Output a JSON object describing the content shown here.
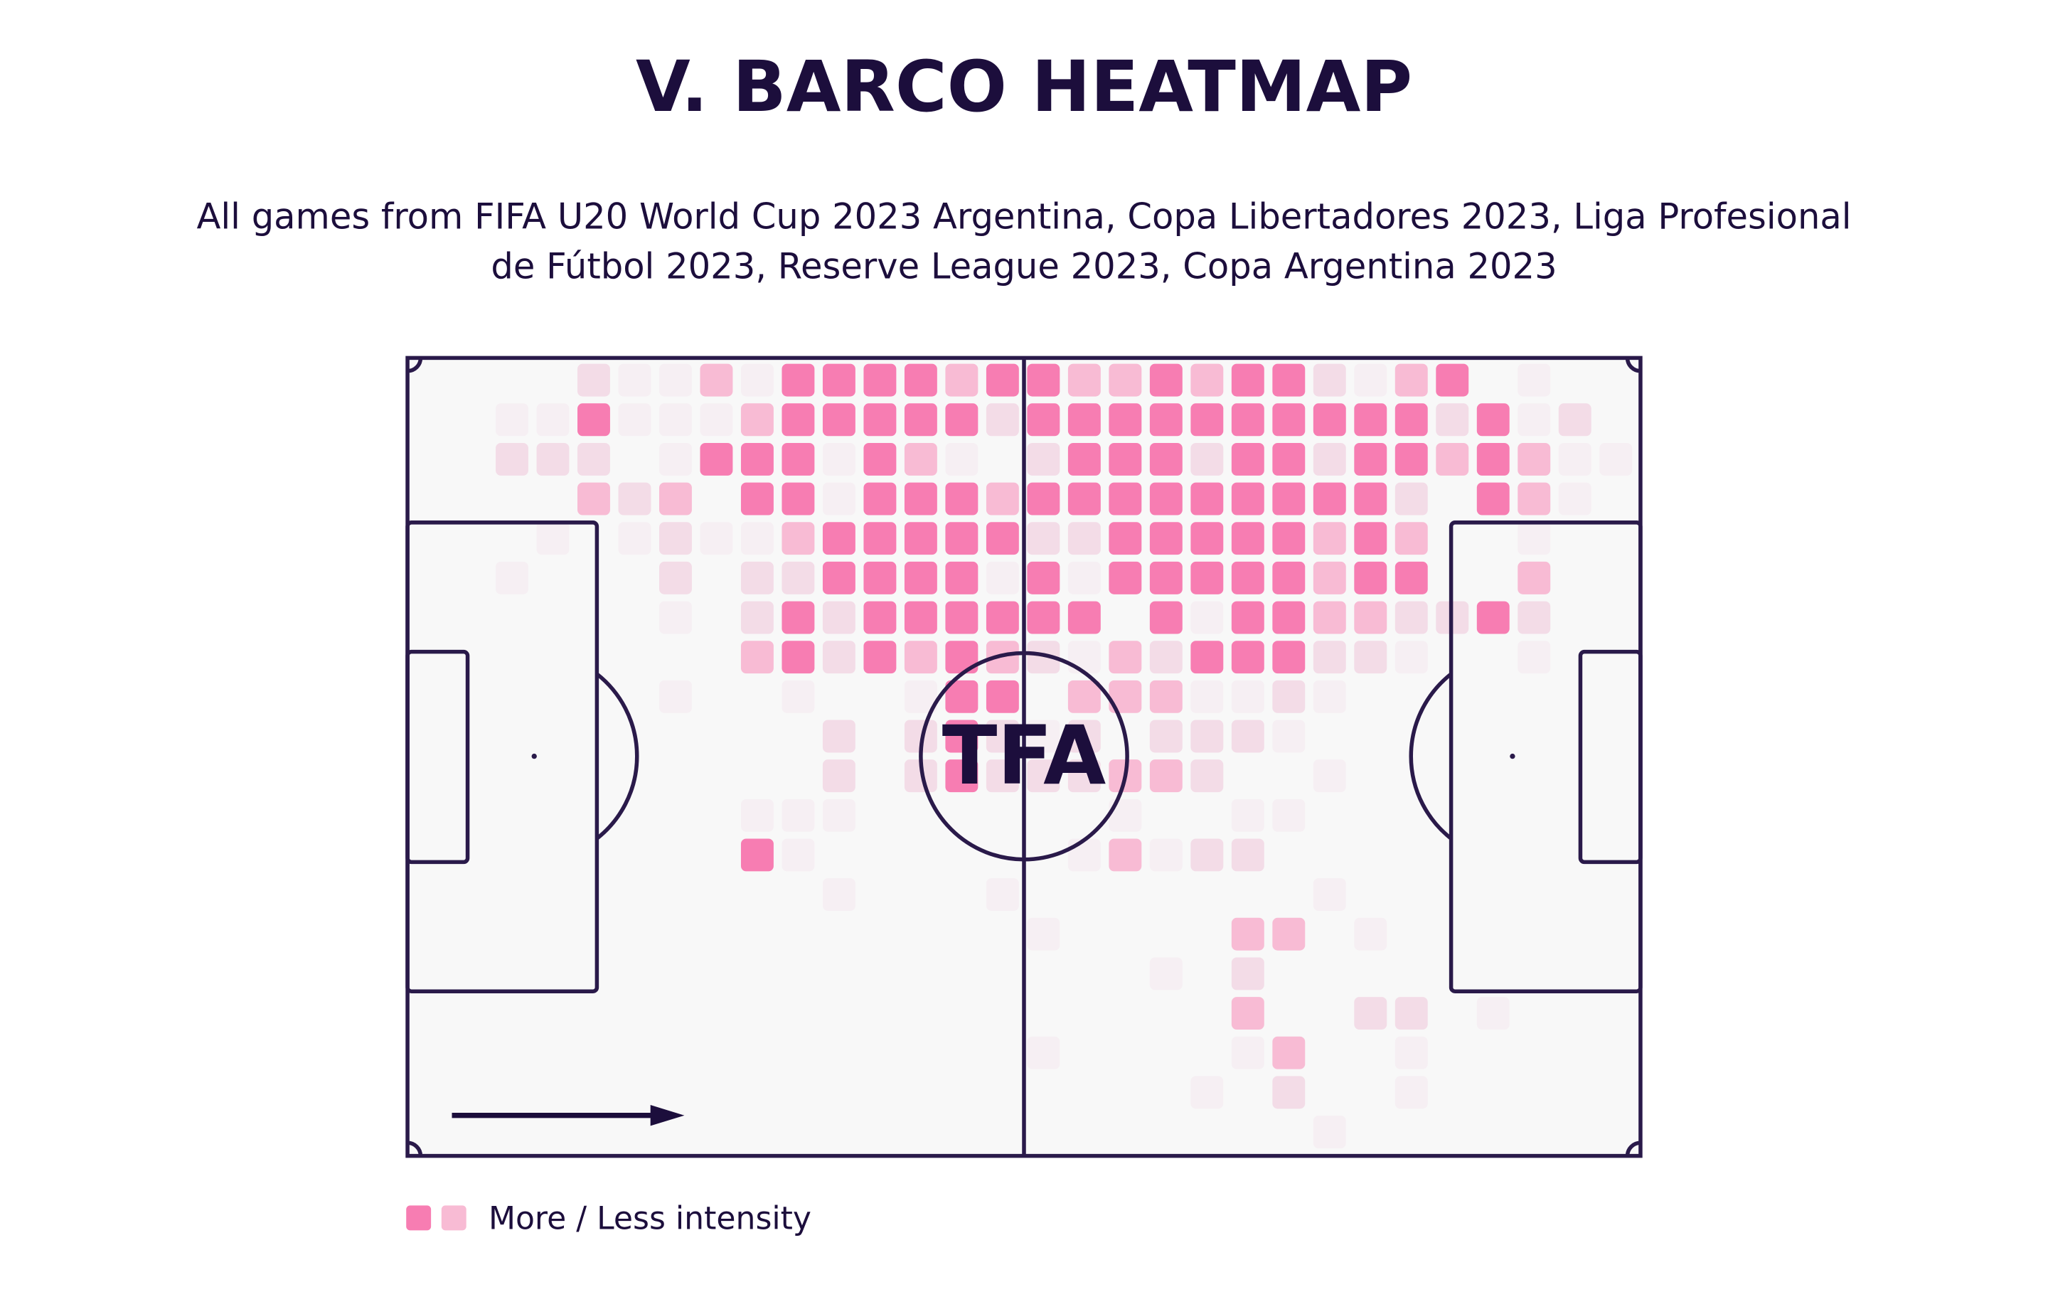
{
  "chart_data": {
    "type": "heatmap",
    "title": "V. BARCO HEATMAP",
    "subtitle": [
      "All games from FIFA U20 World Cup 2023 Argentina, Copa Libertadores 2023, Liga Profesional",
      "de Fútbol 2023, Reserve League 2023, Copa Argentina 2023"
    ],
    "logo": "TFA",
    "legend_label": "More / Less intensity",
    "level_colors": {
      "1": "#f6eff3",
      "2": "#f3dce7",
      "3": "#f8bbd4",
      "4": "#f77db2"
    },
    "values": [
      [
        0,
        0,
        2,
        1,
        1,
        3,
        1,
        4,
        4,
        4,
        4,
        3,
        4,
        4,
        3,
        3,
        4,
        3,
        4,
        4,
        2,
        1,
        3,
        4,
        0,
        1,
        0,
        0
      ],
      [
        1,
        1,
        4,
        1,
        1,
        1,
        3,
        4,
        4,
        4,
        4,
        4,
        2,
        4,
        4,
        4,
        4,
        4,
        4,
        4,
        4,
        4,
        4,
        2,
        4,
        1,
        2,
        0
      ],
      [
        2,
        2,
        2,
        0,
        1,
        4,
        4,
        4,
        1,
        4,
        3,
        1,
        0,
        2,
        4,
        4,
        4,
        2,
        4,
        4,
        2,
        4,
        4,
        3,
        4,
        3,
        1,
        1
      ],
      [
        0,
        0,
        3,
        2,
        3,
        0,
        4,
        4,
        1,
        4,
        4,
        4,
        3,
        4,
        4,
        4,
        4,
        4,
        4,
        4,
        4,
        4,
        2,
        0,
        4,
        3,
        1,
        0
      ],
      [
        0,
        1,
        0,
        1,
        2,
        1,
        1,
        3,
        4,
        4,
        4,
        4,
        4,
        2,
        2,
        4,
        4,
        4,
        4,
        4,
        3,
        4,
        3,
        0,
        0,
        1,
        0,
        0
      ],
      [
        1,
        0,
        0,
        0,
        2,
        0,
        2,
        2,
        4,
        4,
        4,
        4,
        1,
        4,
        1,
        4,
        4,
        4,
        4,
        4,
        3,
        4,
        4,
        0,
        0,
        3,
        0,
        0
      ],
      [
        0,
        0,
        0,
        0,
        1,
        0,
        2,
        4,
        2,
        4,
        4,
        4,
        4,
        4,
        4,
        0,
        4,
        1,
        4,
        4,
        3,
        3,
        2,
        2,
        4,
        2,
        0,
        0
      ],
      [
        0,
        0,
        0,
        0,
        0,
        0,
        3,
        4,
        2,
        4,
        3,
        4,
        3,
        2,
        1,
        3,
        2,
        4,
        4,
        4,
        2,
        2,
        1,
        0,
        0,
        1,
        0,
        0
      ],
      [
        0,
        0,
        0,
        0,
        1,
        0,
        0,
        1,
        0,
        0,
        1,
        4,
        4,
        0,
        3,
        3,
        3,
        1,
        1,
        2,
        1,
        0,
        0,
        0,
        0,
        0,
        0,
        0
      ],
      [
        0,
        0,
        0,
        0,
        0,
        0,
        0,
        0,
        2,
        0,
        2,
        4,
        2,
        1,
        2,
        0,
        2,
        2,
        2,
        1,
        0,
        0,
        0,
        0,
        0,
        0,
        0,
        0
      ],
      [
        0,
        0,
        0,
        0,
        0,
        0,
        0,
        0,
        2,
        0,
        2,
        4,
        2,
        2,
        2,
        3,
        3,
        2,
        0,
        0,
        1,
        0,
        0,
        0,
        0,
        0,
        0,
        0
      ],
      [
        0,
        0,
        0,
        0,
        0,
        0,
        1,
        1,
        1,
        0,
        0,
        0,
        0,
        0,
        0,
        1,
        0,
        0,
        1,
        1,
        0,
        0,
        0,
        0,
        0,
        0,
        0,
        0
      ],
      [
        0,
        0,
        0,
        0,
        0,
        0,
        4,
        1,
        0,
        0,
        0,
        0,
        0,
        0,
        1,
        3,
        1,
        2,
        2,
        0,
        0,
        0,
        0,
        0,
        0,
        0,
        0,
        0
      ],
      [
        0,
        0,
        0,
        0,
        0,
        0,
        0,
        0,
        1,
        0,
        0,
        0,
        1,
        0,
        0,
        0,
        0,
        0,
        0,
        0,
        1,
        0,
        0,
        0,
        0,
        0,
        0,
        0
      ],
      [
        0,
        0,
        0,
        0,
        0,
        0,
        0,
        0,
        0,
        0,
        0,
        0,
        0,
        1,
        0,
        0,
        0,
        0,
        3,
        3,
        0,
        1,
        0,
        0,
        0,
        0,
        0,
        0
      ],
      [
        0,
        0,
        0,
        0,
        0,
        0,
        0,
        0,
        0,
        0,
        0,
        0,
        0,
        0,
        0,
        0,
        1,
        0,
        2,
        0,
        0,
        0,
        0,
        0,
        0,
        0,
        0,
        0
      ],
      [
        0,
        0,
        0,
        0,
        0,
        0,
        0,
        0,
        0,
        0,
        0,
        0,
        0,
        0,
        0,
        0,
        0,
        0,
        3,
        0,
        0,
        2,
        2,
        0,
        1,
        0,
        0,
        0
      ],
      [
        0,
        0,
        0,
        0,
        0,
        0,
        0,
        0,
        0,
        0,
        0,
        0,
        0,
        1,
        0,
        0,
        0,
        0,
        1,
        3,
        0,
        0,
        1,
        0,
        0,
        0,
        0,
        0
      ],
      [
        0,
        0,
        0,
        0,
        0,
        0,
        0,
        0,
        0,
        0,
        0,
        0,
        0,
        0,
        0,
        0,
        0,
        1,
        0,
        2,
        0,
        0,
        1,
        0,
        0,
        0,
        0,
        0
      ],
      [
        0,
        0,
        0,
        0,
        0,
        0,
        0,
        0,
        0,
        0,
        0,
        0,
        0,
        0,
        0,
        0,
        0,
        0,
        0,
        0,
        1,
        0,
        0,
        0,
        0,
        0,
        0,
        0
      ]
    ]
  }
}
